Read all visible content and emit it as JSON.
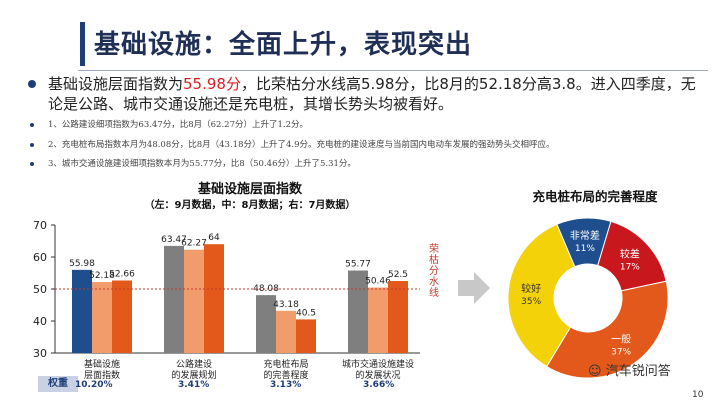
{
  "header": {
    "title": "基础设施：全面上升，表现突出"
  },
  "lead": {
    "prefix": "基础设施层面指数为",
    "highlight": "55.98分",
    "suffix": "，比荣枯分水线高5.98分，比8月的52.18分高3.8。进入四季度，无论是公路、城市交通设施还是充电桩，其增长势头均被看好。"
  },
  "notes": [
    "1、公路建设细项指数为63.47分，比8月（62.27分）上升了1.2分。",
    "2、充电桩布局指数本月为48.08分，比8月（43.18分）上升了4.9分。充电桩的建设速度与当前国内电动车发展的强劲势头交相呼应。",
    "3、城市交通设施建设细项指数本月为55.77分，比8（50.46分）上升了5.31分。"
  ],
  "bar_chart_header": {
    "title": "基础设施层面指数",
    "subtitle": "（左：9月数据，中：8月数据；右：7月数据）"
  },
  "weight_label": "权重",
  "weights": [
    "10.20%",
    "3.41%",
    "3.13%",
    "3.66%"
  ],
  "threshold_label": "荣枯分水线",
  "donut_title": "充电桩布局的完善程度",
  "watermark": "汽车锐问答",
  "page_number": "10",
  "colors": {
    "sep": "#1f4e8f",
    "aug": "#f39c6b",
    "jul": "#e2591b",
    "gray": "#7f7f7f",
    "threshold": "#c0392b"
  },
  "chart_data": [
    {
      "type": "bar",
      "categories": [
        "基础设施层面指数",
        "公路建设的发展规划",
        "充电桩布局的完善程度",
        "城市交通设施建设的发展状况"
      ],
      "category_lines": [
        [
          "基础设施",
          "层面指数"
        ],
        [
          "公路建设",
          "的发展规划"
        ],
        [
          "充电桩布局",
          "的完善程度"
        ],
        [
          "城市交通设施建设",
          "的发展状况"
        ]
      ],
      "series": [
        {
          "name": "9月",
          "values": [
            55.98,
            63.47,
            48.08,
            55.77
          ]
        },
        {
          "name": "8月",
          "values": [
            52.18,
            62.27,
            43.18,
            50.46
          ]
        },
        {
          "name": "7月",
          "values": [
            52.66,
            64,
            40.5,
            52.5
          ]
        }
      ],
      "value_labels": [
        [
          "55.98",
          "52.18",
          "52.66"
        ],
        [
          "63.47",
          "62.27",
          "64"
        ],
        [
          "48.08",
          "43.18",
          "40.5"
        ],
        [
          "55.77",
          "50.46",
          "52.5"
        ]
      ],
      "threshold": 50,
      "ylim": [
        30,
        70
      ],
      "yticks": [
        30,
        40,
        50,
        60,
        70
      ],
      "grid": false
    },
    {
      "type": "pie",
      "style": "donut",
      "slices": [
        {
          "label": "非常差",
          "value": 11,
          "text": "11%",
          "color": "#1f4e8f"
        },
        {
          "label": "较差",
          "value": 17,
          "text": "17%",
          "color": "#c9171e"
        },
        {
          "label": "一般",
          "value": 37,
          "text": "37%",
          "color": "#e2591b"
        },
        {
          "label": "较好",
          "value": 35,
          "text": "35%",
          "color": "#f4d20a"
        }
      ]
    }
  ]
}
